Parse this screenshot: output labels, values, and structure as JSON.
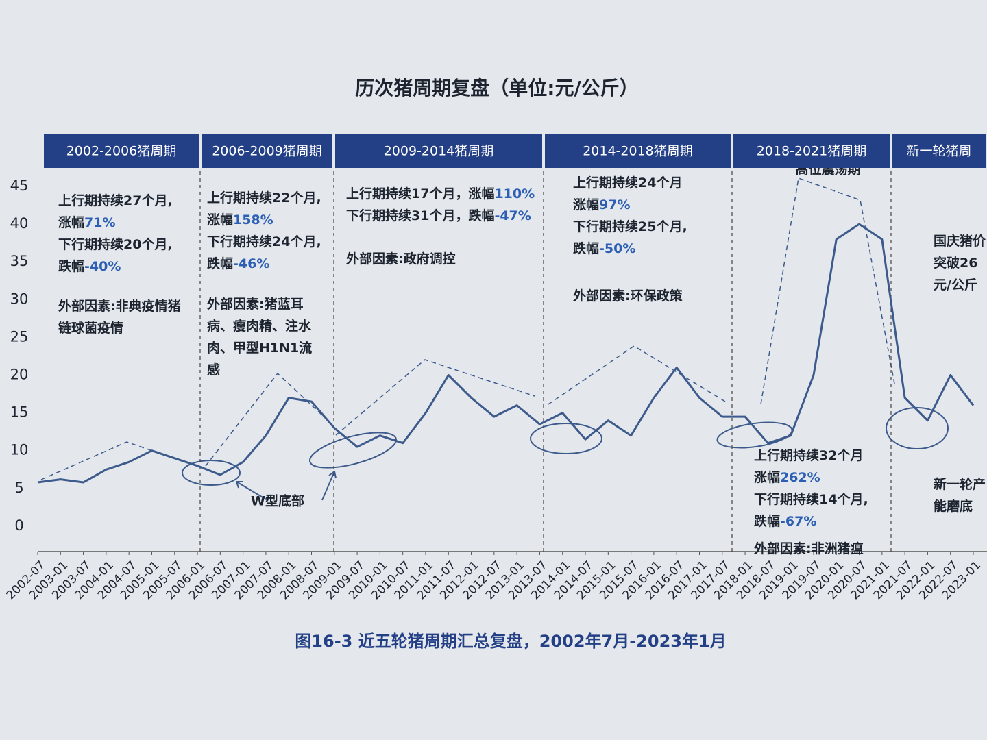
{
  "chart_data": {
    "type": "line",
    "title": "历次猪周期复盘（单位:元/公斤）",
    "caption": "图16-3 近五轮猪周期汇总复盘，2002年7月-2023年1月",
    "x": [
      "2002-07",
      "2003-01",
      "2003-07",
      "2004-01",
      "2004-07",
      "2005-01",
      "2005-07",
      "2006-01",
      "2006-07",
      "2007-01",
      "2007-07",
      "2008-01",
      "2008-07",
      "2009-01",
      "2009-07",
      "2010-01",
      "2010-07",
      "2011-01",
      "2011-07",
      "2012-01",
      "2012-07",
      "2013-01",
      "2013-07",
      "2014-01",
      "2014-07",
      "2015-01",
      "2015-07",
      "2016-01",
      "2016-07",
      "2017-01",
      "2017-07",
      "2018-01",
      "2018-07",
      "2019-01",
      "2019-07",
      "2020-01",
      "2020-07",
      "2021-01",
      "2021-07",
      "2022-01",
      "2022-07",
      "2023-01"
    ],
    "values": [
      5.8,
      6.2,
      5.8,
      7.5,
      8.5,
      10,
      9,
      8,
      6.8,
      8.5,
      12,
      17,
      16.5,
      13,
      10.5,
      12,
      11,
      15,
      20,
      17,
      14.5,
      16,
      13.5,
      15,
      11.5,
      14,
      12,
      17,
      21,
      17,
      14.5,
      14.5,
      11,
      12,
      20,
      38,
      40,
      38,
      17,
      14,
      20,
      16
    ],
    "color": "#3d5a8c",
    "ylim": [
      -3,
      46
    ],
    "yticks": [
      0,
      5,
      10,
      15,
      20,
      25,
      30,
      35,
      40,
      45
    ],
    "periods": [
      {
        "header": "2002-2006猪周期",
        "stats": [
          [
            "上行期持续27个月,"
          ],
          [
            "涨幅",
            "71%"
          ],
          [
            "下行期持续20个月,"
          ],
          [
            "跌幅",
            "-40%"
          ]
        ],
        "factors": [
          [
            "外部因素:非典疫情猪"
          ],
          [
            "链球菌疫情"
          ]
        ]
      },
      {
        "header": "2006-2009猪周期",
        "stats": [
          [
            "上行期持续22个月,"
          ],
          [
            "涨幅",
            "158%"
          ],
          [
            "下行期持续24个月,"
          ],
          [
            "跌幅",
            "-46%"
          ]
        ],
        "factors": [
          [
            "外部因素:猪蓝耳"
          ],
          [
            "病、瘦肉精、注水"
          ],
          [
            "肉、甲型H1N1流"
          ],
          [
            "感"
          ]
        ]
      },
      {
        "header": "2009-2014猪周期",
        "stats": [
          [
            "上行期持续17个月，涨幅",
            "110%"
          ],
          [
            "下行期持续31个月，跌幅",
            "-47%"
          ]
        ],
        "factors": [
          [
            "外部因素:政府调控"
          ]
        ]
      },
      {
        "header": "2014-2018猪周期",
        "stats": [
          [
            "上行期持续24个月"
          ],
          [
            "涨幅",
            "97%"
          ],
          [
            "下行期持续25个月,"
          ],
          [
            "跌幅",
            "-50%"
          ]
        ],
        "factors": [
          [
            "外部因素:环保政策"
          ]
        ]
      },
      {
        "header": "2018-2021猪周期",
        "stats": [
          [
            "上行期持续32个月"
          ],
          [
            "涨幅",
            "262%"
          ],
          [
            "下行期持续14个月,"
          ],
          [
            "跌幅",
            "-67%"
          ]
        ],
        "factors": [
          [
            "外部因素:非洲猪瘟"
          ]
        ]
      },
      {
        "header": "新一轮猪周",
        "stats": [
          [
            "国庆猪价"
          ],
          [
            "突破26"
          ],
          [
            "元/公斤"
          ]
        ],
        "factors": [
          [
            "新一轮产"
          ],
          [
            "能磨底"
          ]
        ]
      }
    ],
    "annotations": [
      "W型底部",
      "高位震荡期"
    ]
  }
}
